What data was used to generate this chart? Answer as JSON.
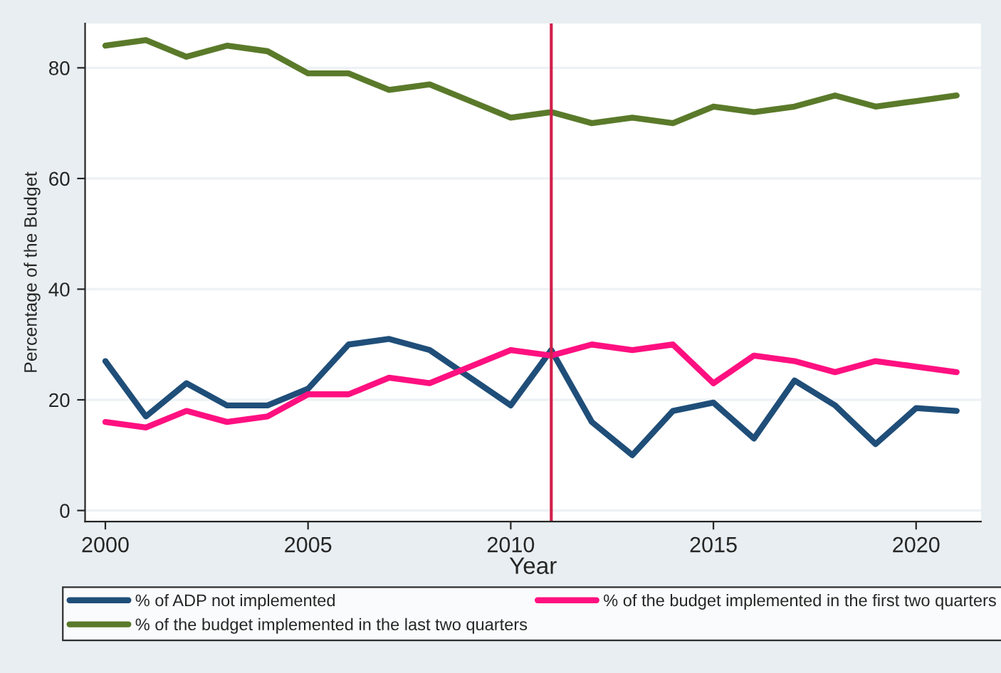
{
  "chart_data": {
    "type": "line",
    "xlabel": "Year",
    "ylabel": "Percentage of the Budget",
    "x": [
      2000,
      2001,
      2002,
      2003,
      2004,
      2005,
      2006,
      2007,
      2008,
      2009,
      2010,
      2011,
      2012,
      2013,
      2014,
      2015,
      2016,
      2017,
      2018,
      2019,
      2020,
      2021
    ],
    "series": [
      {
        "name": "% of ADP not implemented",
        "color": "#1f4e79",
        "values": [
          27,
          17,
          23,
          19,
          19,
          22,
          30,
          31,
          29,
          24,
          19,
          29,
          16,
          10,
          18,
          19.5,
          13,
          23.5,
          19,
          12,
          18.5,
          18
        ]
      },
      {
        "name": "% of the budget implemented in the first two quarters",
        "color": "#ff1080",
        "values": [
          16,
          15,
          18,
          16,
          17,
          21,
          21,
          24,
          23,
          26,
          29,
          28,
          30,
          29,
          30,
          23,
          28,
          27,
          25,
          27,
          26,
          25
        ]
      },
      {
        "name": "% of the budget implemented in the last two quarters",
        "color": "#5a7a2a",
        "values": [
          84,
          85,
          82,
          84,
          83,
          79,
          79,
          76,
          77,
          74,
          71,
          72,
          70,
          71,
          70,
          73,
          72,
          73,
          75,
          73,
          74,
          75
        ]
      }
    ],
    "xlim": [
      1999.5,
      2021.6
    ],
    "xticks": [
      2000,
      2005,
      2010,
      2015,
      2020
    ],
    "ylim": [
      -2,
      88
    ],
    "yticks": [
      0,
      20,
      40,
      60,
      80
    ],
    "ref_lines": [
      {
        "axis": "x",
        "value": 2011,
        "color": "#d0204a"
      }
    ],
    "grid": "y",
    "legend": "bottom",
    "line_style": "solid",
    "marker": "none"
  }
}
